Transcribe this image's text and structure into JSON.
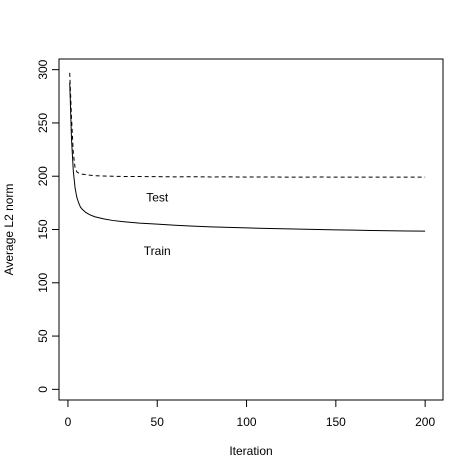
{
  "chart_data": {
    "type": "line",
    "title": "",
    "xlabel": "Iteration",
    "ylabel": "Average L2 norm",
    "xlim": [
      -5,
      210
    ],
    "ylim": [
      -10,
      310
    ],
    "x_ticks": [
      0,
      50,
      100,
      150,
      200
    ],
    "y_ticks": [
      0,
      50,
      100,
      150,
      200,
      250,
      300
    ],
    "grid": false,
    "legend": "none",
    "series": [
      {
        "line_style": "solid",
        "color": "#000000",
        "x": [
          1,
          2,
          3,
          4,
          5,
          6,
          7,
          8,
          10,
          12,
          15,
          20,
          25,
          30,
          40,
          50,
          60,
          70,
          80,
          90,
          100,
          110,
          120,
          130,
          140,
          150,
          160,
          170,
          180,
          190,
          200
        ],
        "y": [
          288,
          235,
          205,
          189,
          180,
          175,
          171,
          169,
          166,
          164,
          162,
          160,
          158.5,
          157.5,
          156,
          155,
          154,
          153.2,
          152.5,
          152,
          151.5,
          151,
          150.7,
          150.3,
          150,
          149.7,
          149.4,
          149.1,
          148.8,
          148.6,
          148.5
        ]
      },
      {
        "line_style": "dashed",
        "color": "#000000",
        "x": [
          1,
          2,
          3,
          4,
          5,
          6,
          7,
          8,
          10,
          12,
          15,
          20,
          25,
          30,
          40,
          50,
          60,
          70,
          80,
          90,
          100,
          110,
          120,
          130,
          140,
          150,
          160,
          170,
          180,
          190,
          200
        ],
        "y": [
          297,
          255,
          222,
          208,
          204,
          203,
          202.5,
          202,
          201.5,
          201,
          200.5,
          200.2,
          200,
          199.8,
          199.7,
          199.6,
          199.4,
          199.5,
          199.3,
          199.4,
          199.2,
          199.3,
          199.2,
          199.1,
          199.3,
          199.1,
          199.2,
          199.1,
          199.2,
          199.1,
          199.2
        ]
      }
    ],
    "annotations": [
      {
        "text": "Test",
        "x": 50,
        "y": 180
      },
      {
        "text": "Train",
        "x": 50,
        "y": 130
      }
    ]
  }
}
